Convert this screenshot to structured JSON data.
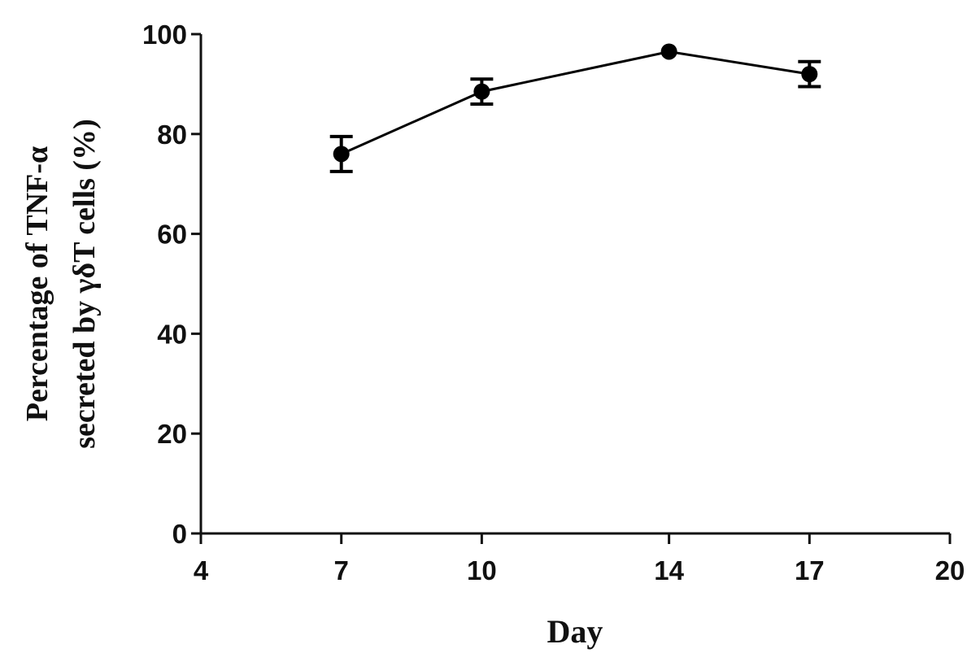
{
  "chart_data": {
    "type": "line",
    "title": "",
    "xlabel": "Day",
    "ylabel_lines": [
      "Percentage of TNF-α",
      "secreted by γδT cells (%)"
    ],
    "x_ticks": [
      4,
      7,
      10,
      14,
      17,
      20
    ],
    "y_ticks": [
      0,
      20,
      40,
      60,
      80,
      100
    ],
    "xlim": [
      4,
      20
    ],
    "ylim": [
      0,
      100
    ],
    "grid": false,
    "legend": "none",
    "series": [
      {
        "x": [
          7,
          10,
          14,
          17
        ],
        "y": [
          76,
          88.5,
          96.5,
          92
        ],
        "error": [
          3.5,
          2.5,
          0,
          2.5
        ],
        "color": "#000000"
      }
    ]
  }
}
